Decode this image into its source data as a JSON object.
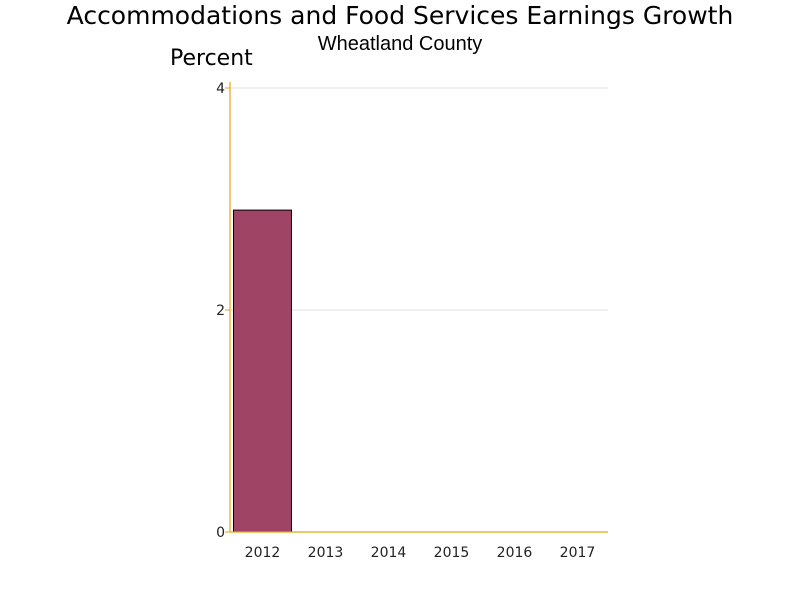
{
  "chart_data": {
    "type": "bar",
    "title": "Accommodations and Food Services Earnings Growth",
    "subtitle": "Wheatland County",
    "xlabel": "",
    "ylabel": "Percent",
    "categories": [
      "2012",
      "2013",
      "2014",
      "2015",
      "2016",
      "2017"
    ],
    "values": [
      2.9,
      0,
      0,
      0,
      0,
      0
    ],
    "ylim": [
      0,
      4
    ],
    "yticks": [
      0,
      2,
      4
    ],
    "grid": true,
    "colors": {
      "bar": "#a04466",
      "axis": "#e8a317",
      "grid": "#e0e0e0",
      "bar_outline": "#000000"
    }
  }
}
